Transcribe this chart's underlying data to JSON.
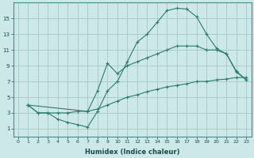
{
  "xlabel": "Humidex (Indice chaleur)",
  "bg_color": "#cde8e8",
  "grid_color": "#aacccc",
  "line_color": "#2d7a6e",
  "xlim": [
    -0.5,
    23.5
  ],
  "ylim": [
    0,
    17
  ],
  "xticks": [
    0,
    1,
    2,
    3,
    4,
    5,
    6,
    7,
    8,
    9,
    10,
    11,
    12,
    13,
    14,
    15,
    16,
    17,
    18,
    19,
    20,
    21,
    22,
    23
  ],
  "yticks": [
    1,
    3,
    5,
    7,
    9,
    11,
    13,
    15
  ],
  "line1_x": [
    1,
    2,
    3,
    4,
    5,
    6,
    7,
    8,
    9,
    10,
    11,
    12,
    13,
    14,
    15,
    16,
    17,
    18,
    19,
    20,
    21,
    22,
    23
  ],
  "line1_y": [
    4,
    3,
    3,
    2.2,
    1.8,
    1.5,
    1.2,
    3.2,
    5.8,
    7,
    9.5,
    12,
    13,
    14.5,
    16,
    16.3,
    16.2,
    15.2,
    13,
    11.2,
    10.5,
    8.2,
    7.2
  ],
  "line2_x": [
    1,
    7,
    8,
    9,
    10,
    11,
    12,
    13,
    14,
    15,
    16,
    17,
    18,
    19,
    20,
    21,
    22,
    23
  ],
  "line2_y": [
    4,
    3.2,
    5.8,
    9.3,
    8,
    9,
    9.5,
    10,
    10.5,
    11,
    11.5,
    11.5,
    11.5,
    11,
    11,
    10.5,
    8.3,
    7.2
  ],
  "line3_x": [
    1,
    2,
    3,
    4,
    5,
    6,
    7,
    8,
    9,
    10,
    11,
    12,
    13,
    14,
    15,
    16,
    17,
    18,
    19,
    20,
    21,
    22,
    23
  ],
  "line3_y": [
    4,
    3,
    3,
    3,
    3,
    3.2,
    3.2,
    3.5,
    4,
    4.5,
    5,
    5.3,
    5.7,
    6,
    6.3,
    6.5,
    6.7,
    7,
    7,
    7.2,
    7.3,
    7.5,
    7.5
  ]
}
